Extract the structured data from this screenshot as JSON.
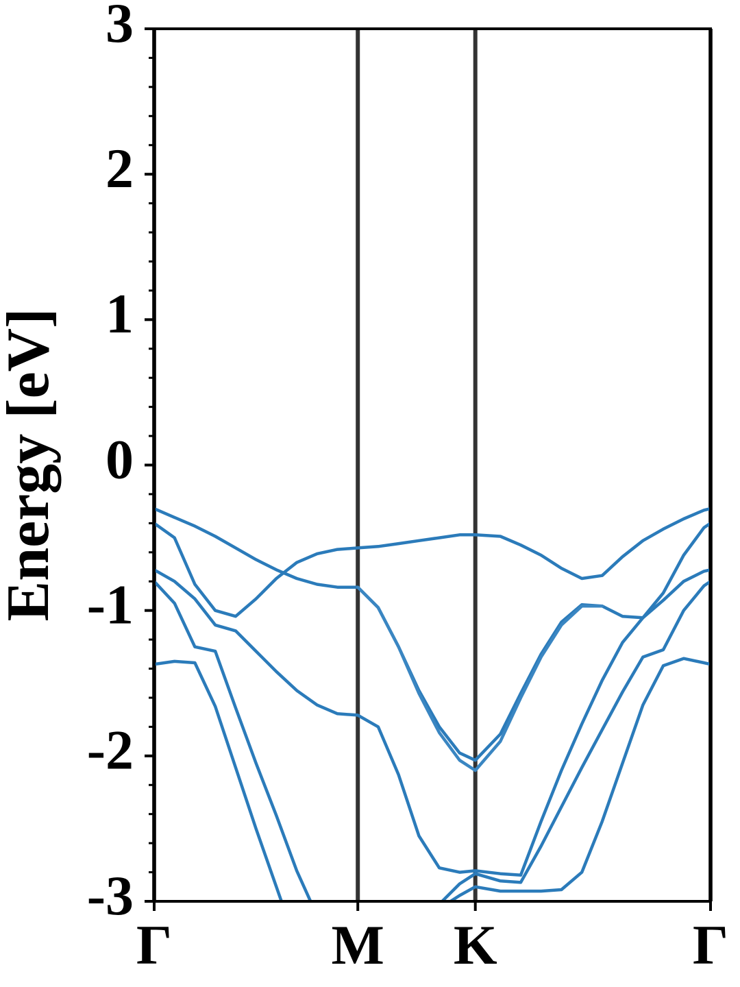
{
  "chart_data": {
    "type": "line",
    "ylabel": "Energy [eV]",
    "x": [
      0,
      0.1,
      0.2,
      0.3,
      0.4,
      0.5,
      0.6,
      0.7,
      0.8,
      0.9,
      1.0,
      1.1,
      1.2,
      1.3,
      1.4,
      1.5,
      1.577,
      1.7,
      1.8,
      1.9,
      2.0,
      2.1,
      2.2,
      2.3,
      2.4,
      2.5,
      2.6,
      2.7,
      2.732
    ],
    "series": [
      {
        "color": "#2b7bba",
        "values": [
          -0.3,
          -0.36,
          -0.42,
          -0.49,
          -0.57,
          -0.65,
          -0.72,
          -0.78,
          -0.82,
          -0.84,
          -0.84,
          -0.98,
          -1.25,
          -1.55,
          -1.8,
          -1.98,
          -2.03,
          -1.85,
          -1.57,
          -1.3,
          -1.08,
          -0.96,
          -0.97,
          -1.04,
          -1.05,
          -0.88,
          -0.62,
          -0.43,
          -0.4
        ]
      },
      {
        "color": "#2b7bba",
        "values": [
          -0.4,
          -0.5,
          -0.82,
          -1.0,
          -1.04,
          -0.92,
          -0.78,
          -0.67,
          -0.61,
          -0.58,
          -0.57,
          -0.56,
          -0.54,
          -0.52,
          -0.5,
          -0.48,
          -0.48,
          -0.49,
          -0.55,
          -0.62,
          -0.71,
          -0.78,
          -0.76,
          -0.63,
          -0.52,
          -0.44,
          -0.37,
          -0.31,
          -0.3
        ]
      },
      {
        "color": "#2b7bba",
        "values": [
          -0.72,
          -0.8,
          -0.92,
          -1.1,
          -1.14,
          -1.28,
          -1.42,
          -1.55,
          -1.65,
          -1.71,
          -1.72,
          -1.8,
          -2.13,
          -2.55,
          -2.77,
          -2.8,
          -2.79,
          -2.81,
          -2.82,
          -2.45,
          -2.1,
          -1.78,
          -1.48,
          -1.22,
          -1.05,
          -0.93,
          -0.8,
          -0.73,
          -0.72
        ]
      },
      {
        "color": "#2b7bba",
        "values": [
          -0.8,
          -0.95,
          -1.25,
          -1.28,
          -1.67,
          -2.05,
          -2.41,
          -2.79,
          -3.1,
          null,
          null,
          null,
          null,
          null,
          -3.05,
          -2.96,
          -2.9,
          -2.93,
          -2.93,
          -2.93,
          -2.92,
          -2.8,
          -2.45,
          -2.05,
          -1.65,
          -1.38,
          -1.33,
          -1.36,
          -1.37
        ]
      },
      {
        "color": "#2b7bba",
        "values": [
          -1.37,
          -1.35,
          -1.36,
          -1.66,
          -2.08,
          -2.5,
          -2.9,
          -3.3,
          null,
          null,
          null,
          null,
          null,
          null,
          -3.02,
          -2.88,
          -2.81,
          -2.86,
          -2.87,
          -2.62,
          -2.35,
          -2.08,
          -1.82,
          -1.56,
          -1.32,
          -1.27,
          -1.0,
          -0.83,
          -0.8
        ]
      },
      {
        "color": "#3a86c2",
        "values": [
          null,
          null,
          null,
          null,
          null,
          null,
          null,
          null,
          null,
          null,
          -0.84,
          -0.98,
          -1.25,
          -1.57,
          -1.84,
          -2.03,
          -2.1,
          -1.9,
          -1.6,
          -1.32,
          -1.1,
          -0.97,
          -0.97,
          null,
          null,
          null,
          null,
          null,
          null
        ]
      }
    ],
    "xlim": [
      0,
      2.732
    ],
    "xticks": [
      {
        "value": 0,
        "label": "Γ"
      },
      {
        "value": 1.0,
        "label": "M"
      },
      {
        "value": 1.577,
        "label": "K"
      },
      {
        "value": 2.732,
        "label": "Γ"
      }
    ],
    "ylim": [
      -3,
      3
    ],
    "yticks": [
      3,
      2,
      1,
      0,
      -1,
      -2,
      -3
    ],
    "yminor": 5,
    "xgrid": true
  }
}
